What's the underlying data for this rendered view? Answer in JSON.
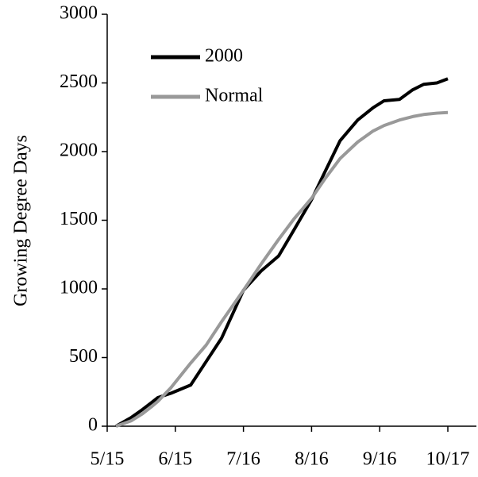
{
  "chart_data": {
    "type": "line",
    "y_label": "Growing Degree Days",
    "x": [
      4,
      11,
      16,
      20,
      23,
      29,
      38,
      45,
      52,
      62,
      70,
      78,
      85,
      93,
      99,
      106,
      114,
      121,
      126,
      133,
      139,
      144,
      150,
      155
    ],
    "series": [
      {
        "name": "2000",
        "color": "#000000",
        "values": [
          0,
          64,
          121,
          170,
          208,
          240,
          300,
          470,
          640,
          990,
          1130,
          1240,
          1430,
          1650,
          1850,
          2080,
          2230,
          2320,
          2370,
          2380,
          2450,
          2490,
          2500,
          2530
        ]
      },
      {
        "name": "Normal",
        "color": "#999999",
        "values": [
          0,
          40,
          90,
          140,
          180,
          280,
          460,
          590,
          760,
          990,
          1180,
          1360,
          1510,
          1660,
          1800,
          1950,
          2070,
          2150,
          2190,
          2230,
          2255,
          2270,
          2280,
          2285
        ]
      }
    ],
    "xlim": [
      0,
      168
    ],
    "xticks": [
      {
        "value": 0,
        "label": "5/15"
      },
      {
        "value": 31,
        "label": "6/15"
      },
      {
        "value": 62,
        "label": "7/16"
      },
      {
        "value": 93,
        "label": "8/16"
      },
      {
        "value": 124,
        "label": "9/16"
      },
      {
        "value": 155,
        "label": "10/17"
      }
    ],
    "ylim": [
      0,
      3000
    ],
    "yticks": [
      0,
      500,
      1000,
      1500,
      2000,
      2500,
      3000
    ],
    "grid": false,
    "legend": "upper left"
  }
}
